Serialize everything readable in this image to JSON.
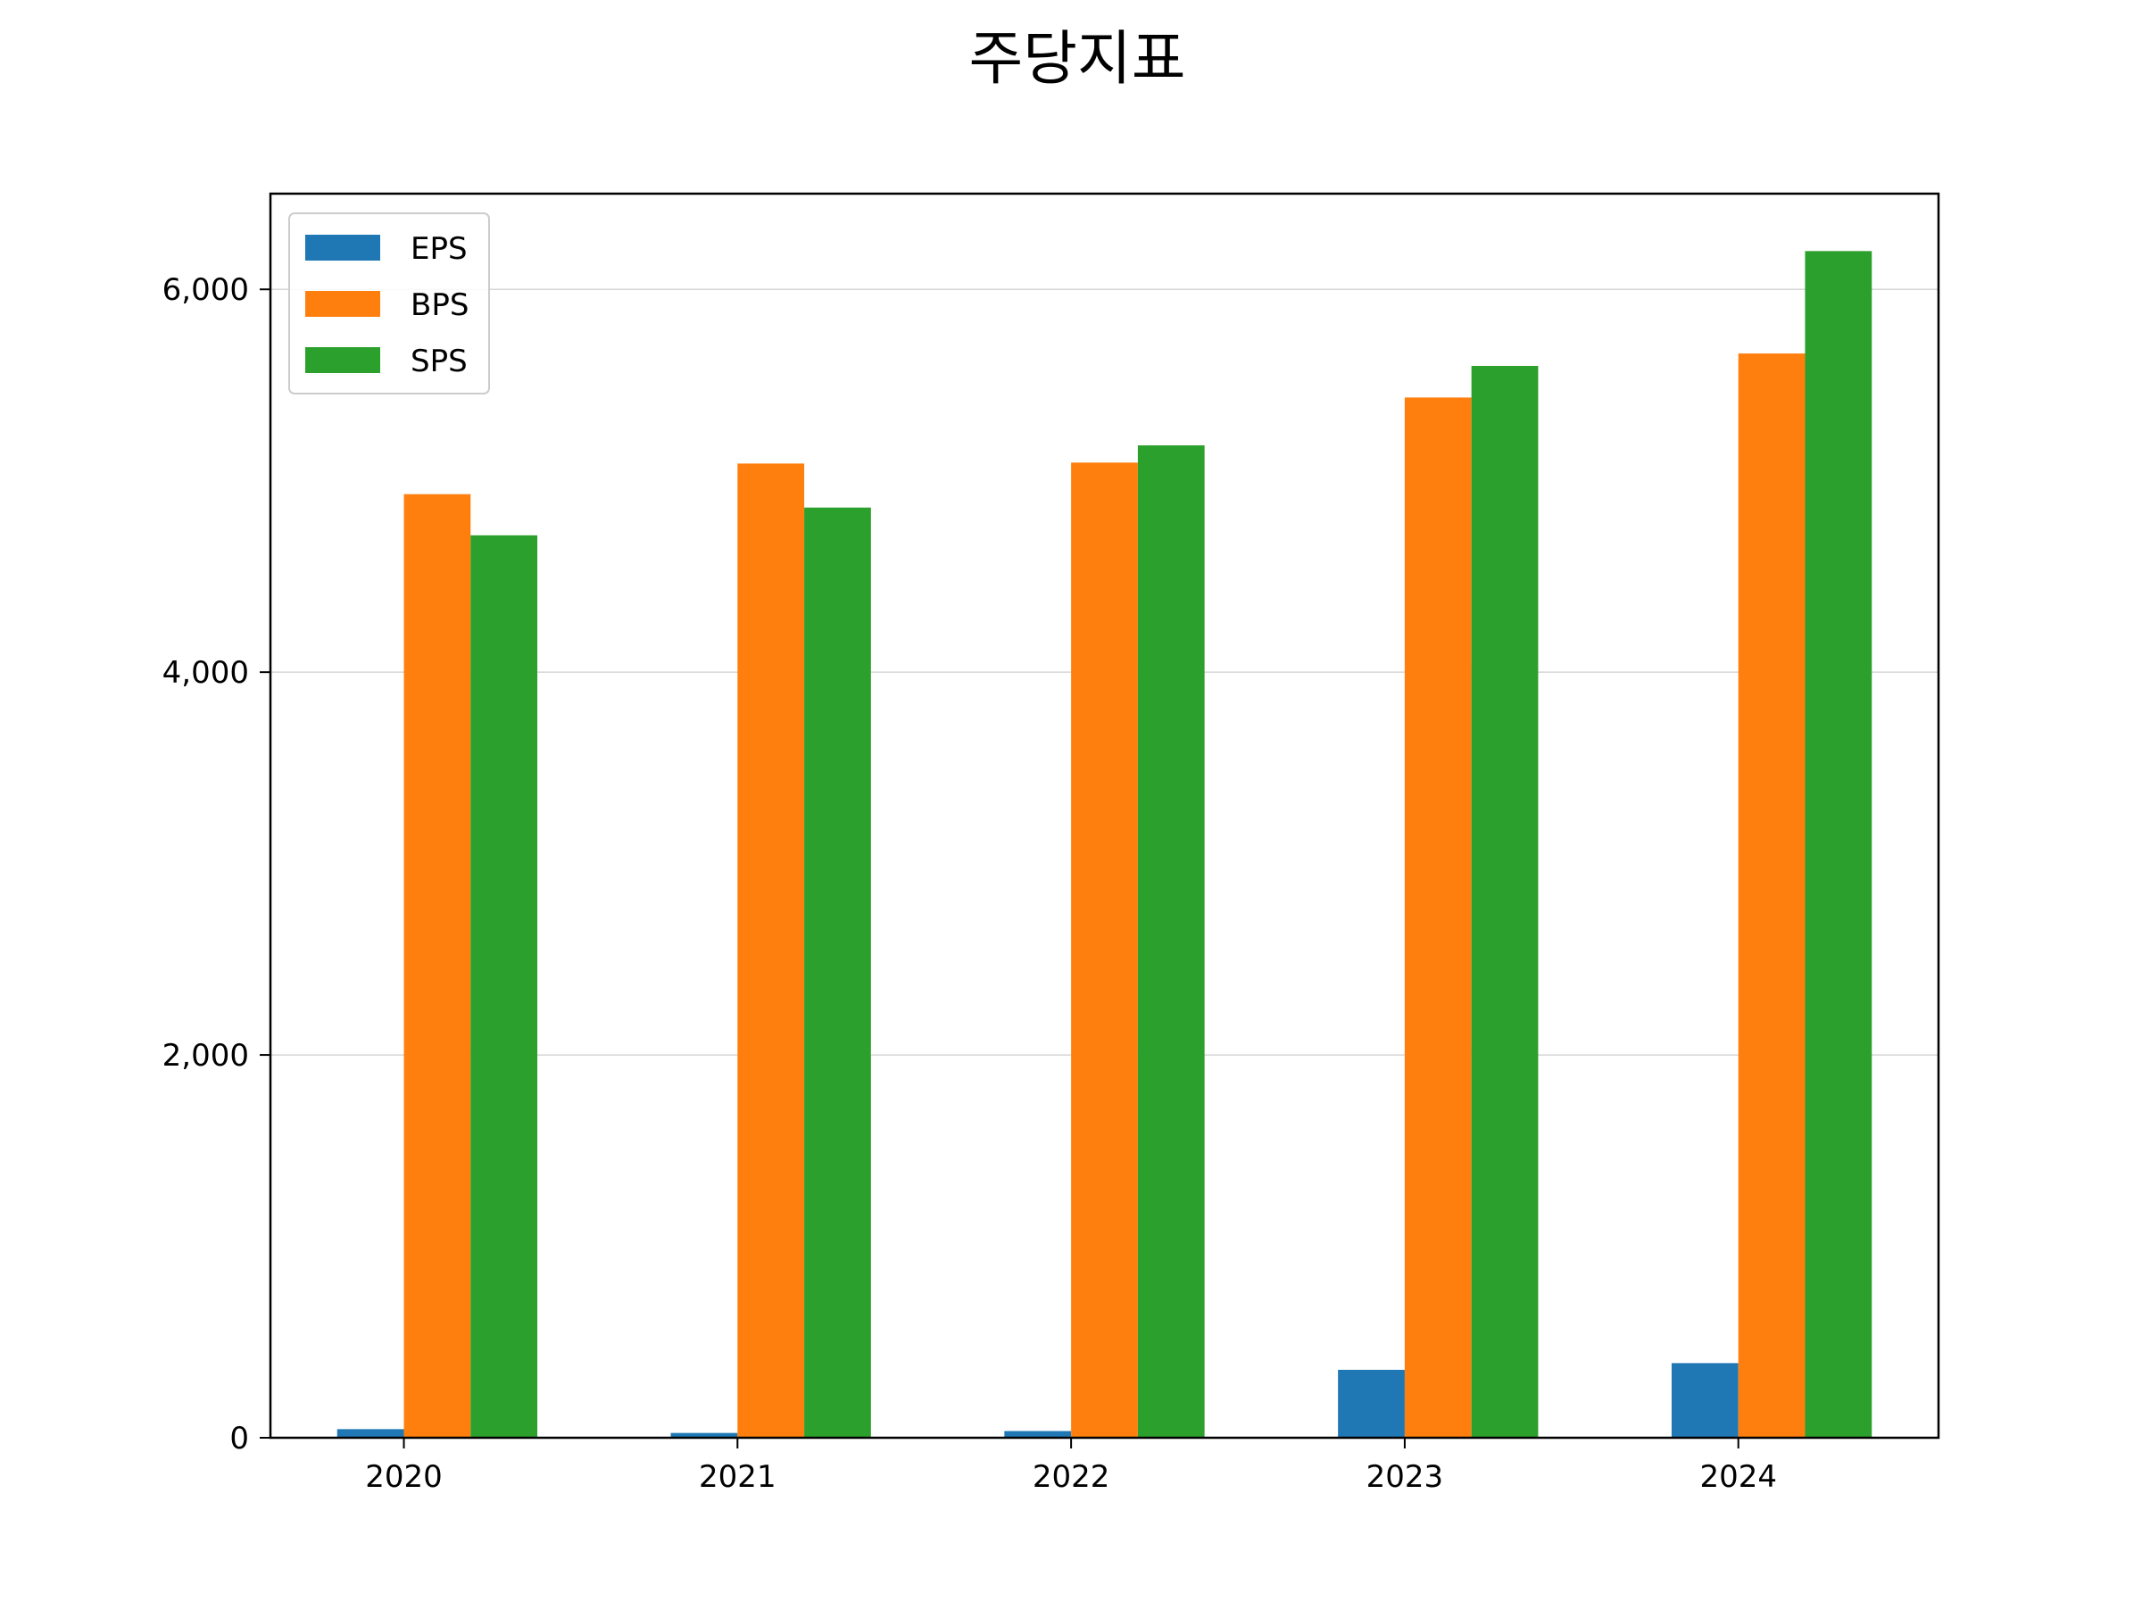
{
  "chart_data": {
    "type": "bar",
    "title": "주당지표",
    "categories": [
      "2020",
      "2021",
      "2022",
      "2023",
      "2024"
    ],
    "series": [
      {
        "name": "EPS",
        "color": "#1f77b4",
        "values": [
          45,
          25,
          35,
          355,
          390
        ]
      },
      {
        "name": "BPS",
        "color": "#ff7f0e",
        "values": [
          4930,
          5090,
          5095,
          5435,
          5665
        ]
      },
      {
        "name": "SPS",
        "color": "#2ca02c",
        "values": [
          4715,
          4860,
          5185,
          5600,
          6200
        ]
      }
    ],
    "ylim": [
      0,
      6500
    ],
    "yticks": [
      0,
      2000,
      4000,
      6000
    ],
    "ytick_labels": [
      "0",
      "2,000",
      "4,000",
      "6,000"
    ],
    "grid": "horizontal",
    "legend_position": "top-left",
    "xlabel": "",
    "ylabel": ""
  }
}
